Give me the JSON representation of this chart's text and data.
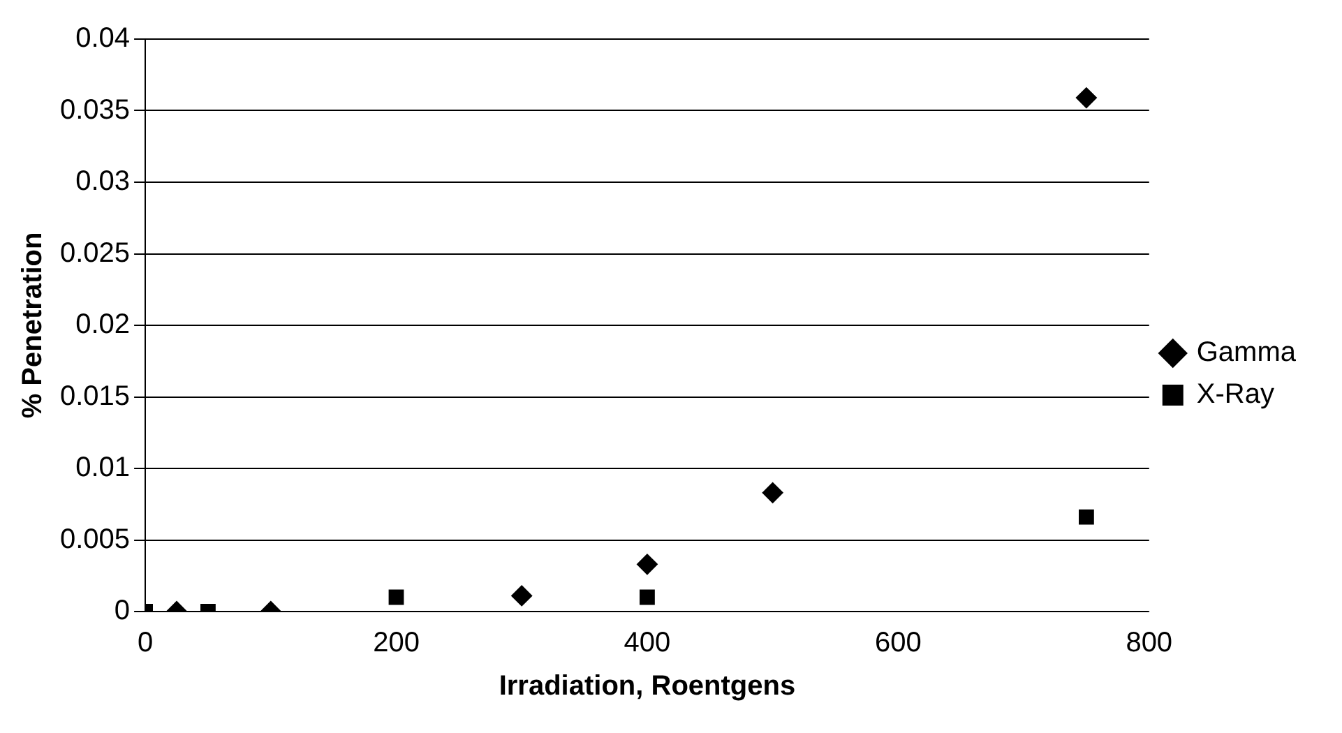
{
  "chart_data": {
    "type": "scatter",
    "xlabel": "Irradiation, Roentgens",
    "ylabel": "% Penetration",
    "xlim": [
      0,
      800
    ],
    "xticks": [
      0,
      200,
      400,
      600,
      800
    ],
    "ylim": [
      0,
      0.04
    ],
    "yticks": [
      0,
      0.005,
      0.01,
      0.015,
      0.02,
      0.025,
      0.03,
      0.035,
      0.04
    ],
    "grid": "y",
    "legend": "right",
    "series": [
      {
        "name": "Gamma",
        "color": "#000000",
        "marker": "diamond",
        "x": [
          25,
          100,
          300,
          400,
          500,
          750
        ],
        "values": [
          0,
          0,
          0.0011,
          0.0033,
          0.0083,
          0.0359
        ]
      },
      {
        "name": "X-Ray",
        "color": "#000000",
        "marker": "square",
        "x": [
          0,
          50,
          200,
          400,
          750
        ],
        "values": [
          0,
          0,
          0.001,
          0.001,
          0.0066
        ]
      }
    ]
  }
}
